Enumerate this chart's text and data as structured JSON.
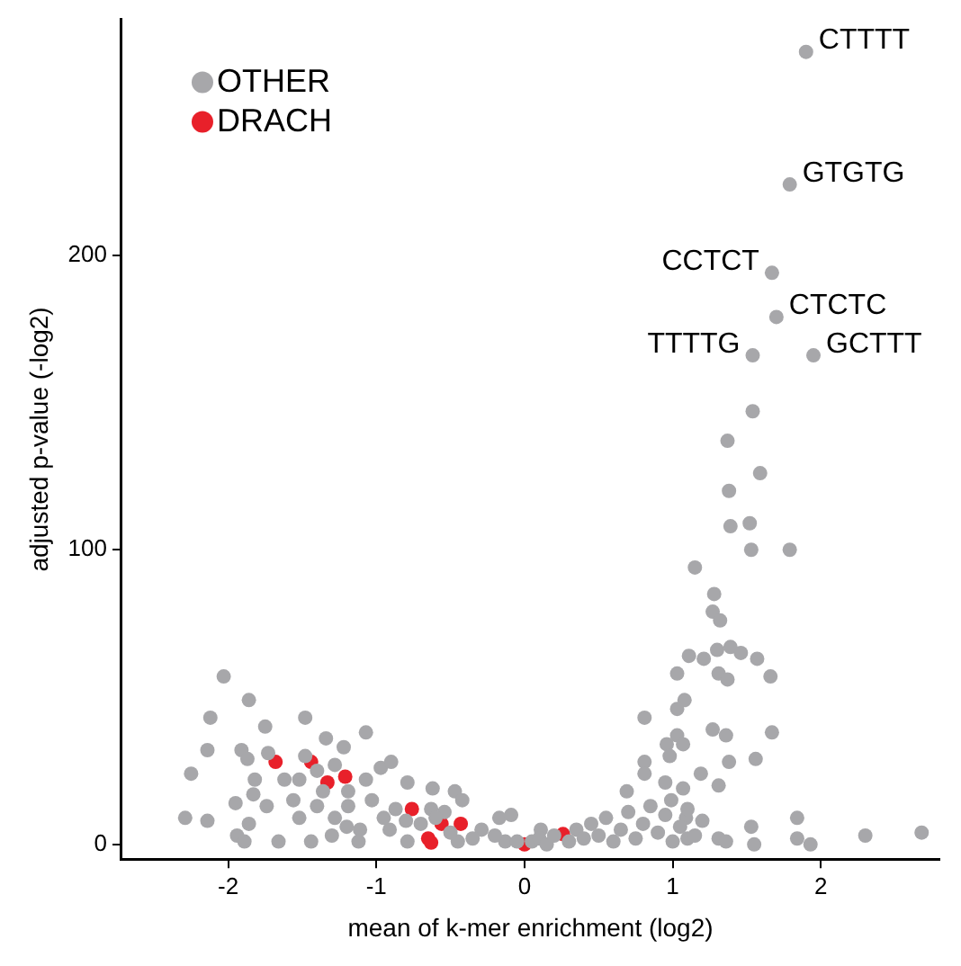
{
  "chart_data": {
    "type": "scatter",
    "xlabel": "mean of k-mer enrichment (log2)",
    "ylabel": "adjusted p-value (-log2)",
    "xlim": [
      -2.72,
      2.8
    ],
    "xticks": [
      -2,
      -1,
      0,
      1,
      2
    ],
    "ylim": [
      -5,
      280
    ],
    "yticks": [
      0,
      100,
      200
    ],
    "grid": false,
    "legend": "top left",
    "marker": "circle",
    "series": [
      {
        "name": "OTHER",
        "color": "#a7a7aa",
        "x": [
          1.9,
          1.79,
          1.67,
          1.7,
          1.54,
          1.95,
          1.54,
          1.37,
          1.59,
          1.38,
          1.39,
          1.52,
          1.53,
          1.79,
          1.15,
          1.28,
          1.27,
          1.32,
          1.11,
          1.21,
          1.3,
          1.39,
          1.46,
          1.57,
          1.03,
          1.31,
          1.37,
          1.66,
          1.08,
          1.03,
          0.81,
          1.27,
          1.36,
          1.67,
          1.03,
          0.96,
          1.07,
          1.56,
          1.38,
          0.81,
          0.98,
          1.19,
          0.81,
          0.95,
          1.31,
          1.07,
          0.99,
          0.69,
          1.09,
          1.53,
          1.84,
          1.84,
          1.93,
          2.3,
          2.68,
          1.55,
          1.31,
          1.36,
          1.1,
          -2.03,
          -1.86,
          -2.12,
          -1.48,
          -1.75,
          -1.07,
          -1.34,
          -2.14,
          -1.91,
          -1.87,
          -1.73,
          -1.22,
          -1.48,
          -2.25,
          -1.82,
          -1.95,
          -1.83,
          -1.74,
          -2.29,
          -2.14,
          -1.86,
          -1.94,
          -1.89,
          -1.66,
          -0.97,
          -0.9,
          -0.62,
          -0.47,
          -0.42,
          -0.17,
          -0.09,
          -0.79,
          -1.07,
          -1.28,
          -1.4,
          -1.62,
          -1.52,
          -1.56,
          -1.4,
          -1.19,
          -1.44,
          -1.11,
          -0.91,
          -0.7,
          -0.54,
          -0.29,
          0.11,
          -1.28,
          -1.52,
          -1.03,
          -0.87,
          -0.63,
          -1.19,
          -1.36,
          -1.12,
          -0.79,
          -0.45,
          -0.13,
          0.05,
          0.1,
          0.15,
          0.2,
          0.3,
          0.35,
          0.4,
          0.45,
          0.5,
          0.55,
          0.6,
          0.65,
          0.7,
          0.75,
          0.8,
          0.85,
          0.9,
          0.95,
          1.0,
          1.05,
          1.1,
          1.15,
          1.2,
          -0.05,
          -0.2,
          -0.35,
          -0.5,
          -0.6,
          -0.8,
          -0.95,
          -1.2,
          -1.3
        ],
        "values": [
          269,
          224,
          194,
          179,
          166,
          166,
          147,
          137,
          126,
          120,
          108,
          109,
          100,
          100,
          94,
          85,
          79,
          76,
          64,
          63,
          66,
          67,
          65,
          63,
          58,
          58,
          56,
          57,
          49,
          46,
          43,
          39,
          37,
          38,
          37,
          34,
          34,
          29,
          28,
          28,
          30,
          24,
          24,
          21,
          20,
          19,
          15,
          18,
          9,
          6,
          9,
          2,
          0,
          3,
          4,
          0,
          2,
          1,
          2,
          57,
          49,
          43,
          43,
          40,
          38,
          36,
          32,
          32,
          29,
          31,
          33,
          30,
          24,
          22,
          14,
          17,
          13,
          9,
          8,
          7,
          3,
          1,
          1,
          26,
          28,
          19,
          18,
          15,
          9,
          10,
          21,
          22,
          27,
          25,
          22,
          22,
          15,
          13,
          13,
          1,
          5,
          5,
          7,
          11,
          5,
          5,
          9,
          9,
          15,
          12,
          12,
          18,
          18,
          1,
          1,
          1,
          1,
          1,
          2,
          0,
          3,
          1,
          5,
          2,
          7,
          3,
          9,
          1,
          5,
          11,
          2,
          7,
          13,
          4,
          10,
          1,
          6,
          12,
          3,
          8,
          1,
          3,
          2,
          4,
          9,
          8,
          9,
          6,
          3
        ]
      },
      {
        "name": "DRACH",
        "color": "#e8202a",
        "x": [
          -1.68,
          -1.44,
          -1.33,
          -1.21,
          -0.76,
          -0.56,
          -0.43,
          -0.65,
          -0.63,
          0.0,
          0.26
        ],
        "values": [
          28,
          28,
          21,
          23,
          12,
          7,
          7,
          2,
          0.6,
          0,
          3.5
        ]
      }
    ],
    "annotations": [
      {
        "text": "CTTTT",
        "x": 1.9,
        "y": 269
      },
      {
        "text": "GTGTG",
        "x": 1.79,
        "y": 224
      },
      {
        "text": "CCTCT",
        "x": 1.67,
        "y": 194
      },
      {
        "text": "CTCTC",
        "x": 1.7,
        "y": 179
      },
      {
        "text": "TTTTG",
        "x": 1.54,
        "y": 166
      },
      {
        "text": "GCTTT",
        "x": 1.95,
        "y": 166
      }
    ]
  }
}
